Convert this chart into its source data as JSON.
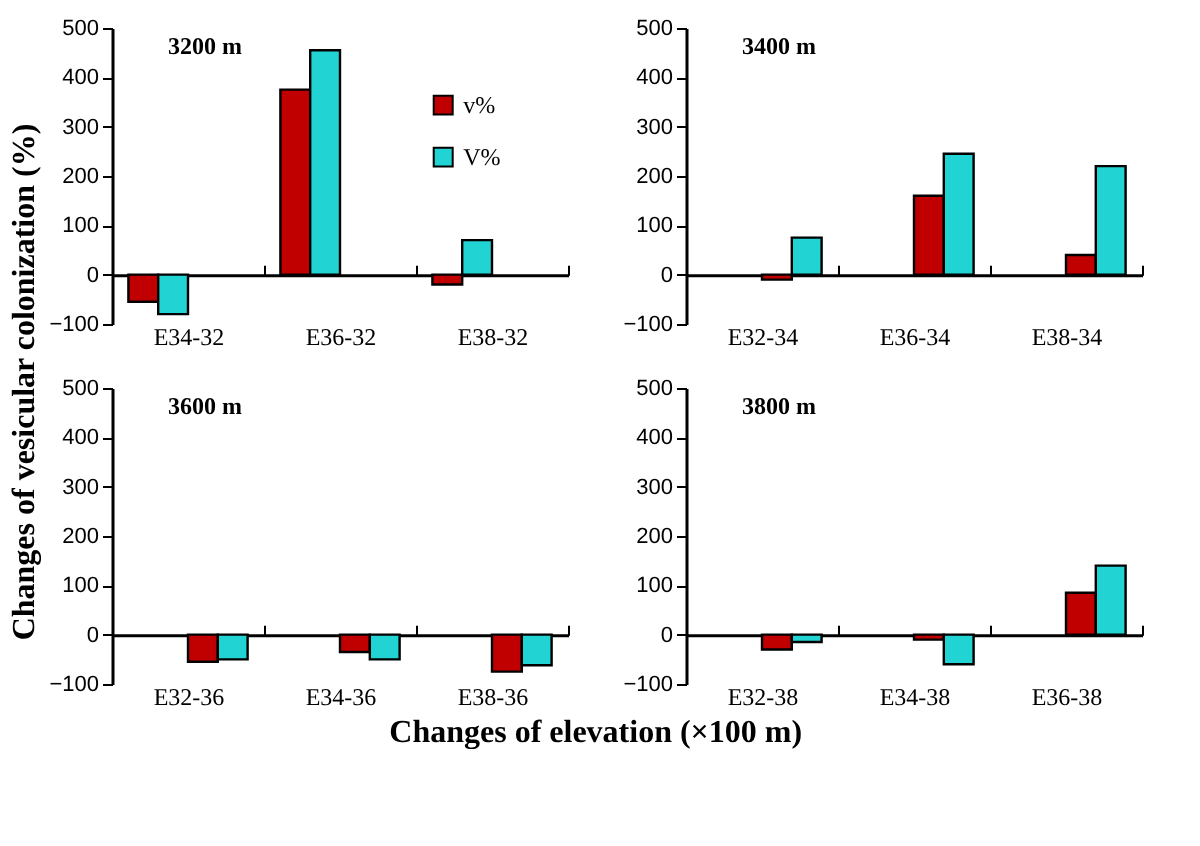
{
  "chart_data": [
    {
      "type": "bar",
      "title": "3200 m",
      "ylabel": "Changes of vesicular colonization (%)",
      "categories": [
        "E34-32",
        "E36-32",
        "E38-32"
      ],
      "series": [
        {
          "name": "v%",
          "color": "#c00000",
          "values": [
            -55,
            375,
            -20
          ]
        },
        {
          "name": "V%",
          "color": "#22d3d3",
          "values": [
            -80,
            455,
            70
          ]
        }
      ],
      "ylim": [
        -100,
        500
      ],
      "yticks": [
        -100,
        0,
        100,
        200,
        300,
        400,
        500
      ],
      "legend": "top right"
    },
    {
      "type": "bar",
      "title": "3400 m",
      "categories": [
        "E32-34",
        "E36-34",
        "E38-34"
      ],
      "series": [
        {
          "color": "#c00000",
          "values": [
            -10,
            160,
            40
          ]
        },
        {
          "color": "#22d3d3",
          "values": [
            75,
            245,
            220
          ]
        }
      ],
      "ylim": [
        -100,
        500
      ],
      "yticks": [
        -100,
        0,
        100,
        200,
        300,
        400,
        500
      ]
    },
    {
      "type": "bar",
      "title": "3600 m",
      "xlabel": "Changes of elevation (×100 m)",
      "categories": [
        "E32-36",
        "E34-36",
        "E38-36"
      ],
      "series": [
        {
          "color": "#c00000",
          "values": [
            -55,
            -35,
            -75
          ]
        },
        {
          "color": "#22d3d3",
          "values": [
            -50,
            -50,
            -62
          ]
        }
      ],
      "ylim": [
        -100,
        500
      ],
      "yticks": [
        -100,
        0,
        100,
        200,
        300,
        400,
        500
      ]
    },
    {
      "type": "bar",
      "title": "3800 m",
      "categories": [
        "E32-38",
        "E34-38",
        "E36-38"
      ],
      "series": [
        {
          "color": "#c00000",
          "values": [
            -30,
            -10,
            85
          ]
        },
        {
          "color": "#22d3d3",
          "values": [
            -15,
            -60,
            140
          ]
        }
      ],
      "ylim": [
        -100,
        500
      ],
      "yticks": [
        -100,
        0,
        100,
        200,
        300,
        400,
        500
      ]
    }
  ]
}
